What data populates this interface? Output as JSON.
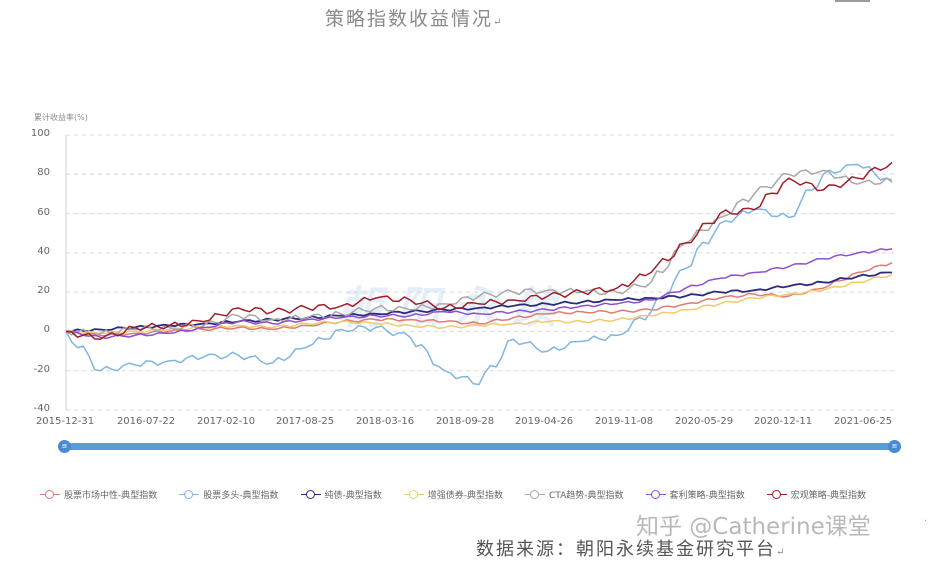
{
  "document": {
    "title": "策略指数收益情况",
    "source": "数据来源：朝阳永续基金研究平台",
    "return_mark": "↵",
    "zhihu_watermark": "知乎 @Catherine课堂",
    "chart_watermark": "朝阳永续"
  },
  "slider": {
    "handle_glyph": "≡"
  },
  "chart_data": {
    "type": "line",
    "title": "",
    "ylabel": "累计收益率(%)",
    "xlabel": "",
    "ylim": [
      -40,
      100
    ],
    "yticks": [
      100,
      80,
      60,
      40,
      20,
      0,
      -20,
      -40
    ],
    "xticks": [
      "2015-12-31",
      "2016-07-22",
      "2017-02-10",
      "2017-08-25",
      "2018-03-16",
      "2018-09-28",
      "2019-04-26",
      "2019-11-08",
      "2020-05-29",
      "2020-12-11",
      "2021-06-25"
    ],
    "grid": "horizontal dashed",
    "legend_position": "bottom",
    "x": [
      "2015-12-31",
      "2016-03",
      "2016-06",
      "2016-09",
      "2016-12",
      "2017-03",
      "2017-06",
      "2017-09",
      "2017-12",
      "2018-03",
      "2018-06",
      "2018-09",
      "2018-12",
      "2019-03",
      "2019-06",
      "2019-09",
      "2019-12",
      "2020-03",
      "2020-06",
      "2020-09",
      "2020-12",
      "2021-03",
      "2021-06",
      "2021-09",
      "2021-10"
    ],
    "series": [
      {
        "name": "股票市场中性-典型指数",
        "color": "#e07b73",
        "values": [
          0,
          -2,
          -1,
          0,
          1,
          2,
          1,
          3,
          5,
          6,
          6,
          5,
          4,
          7,
          9,
          10,
          10,
          11,
          14,
          17,
          19,
          18,
          22,
          30,
          35
        ]
      },
      {
        "name": "股票多头-典型指数",
        "color": "#7fb5e3",
        "values": [
          0,
          -20,
          -17,
          -15,
          -13,
          -12,
          -16,
          -8,
          1,
          2,
          -3,
          -20,
          -27,
          -4,
          -10,
          -5,
          -2,
          10,
          32,
          55,
          62,
          58,
          80,
          85,
          76
        ]
      },
      {
        "name": "纯债-典型指数",
        "color": "#2c2b7d",
        "values": [
          0,
          1,
          2,
          3,
          4,
          5,
          6,
          7,
          8,
          9,
          10,
          11,
          12,
          13,
          14,
          15,
          16,
          17,
          18,
          20,
          21,
          23,
          25,
          28,
          30
        ]
      },
      {
        "name": "增强债券-典型指数",
        "color": "#f2c96b",
        "values": [
          0,
          -1,
          0,
          1,
          2,
          3,
          2,
          4,
          5,
          4,
          3,
          2,
          3,
          4,
          5,
          5,
          6,
          8,
          11,
          14,
          17,
          19,
          21,
          25,
          29
        ]
      },
      {
        "name": "CTA趋势-典型指数",
        "color": "#a8a8a8",
        "values": [
          0,
          -1,
          1,
          2,
          3,
          8,
          6,
          7,
          9,
          12,
          11,
          14,
          18,
          20,
          21,
          20,
          20,
          25,
          45,
          58,
          70,
          80,
          82,
          75,
          77
        ]
      },
      {
        "name": "套利策略-典型指数",
        "color": "#8e4fd3",
        "values": [
          0,
          -3,
          -2,
          -1,
          2,
          5,
          4,
          6,
          7,
          8,
          8,
          10,
          9,
          10,
          11,
          13,
          14,
          16,
          22,
          27,
          30,
          33,
          37,
          40,
          42
        ]
      },
      {
        "name": "宏观策略-典型指数",
        "color": "#a01d2a",
        "values": [
          0,
          -4,
          2,
          3,
          5,
          12,
          10,
          12,
          13,
          17,
          16,
          12,
          14,
          16,
          18,
          20,
          22,
          30,
          45,
          60,
          62,
          78,
          72,
          78,
          86
        ]
      }
    ]
  }
}
